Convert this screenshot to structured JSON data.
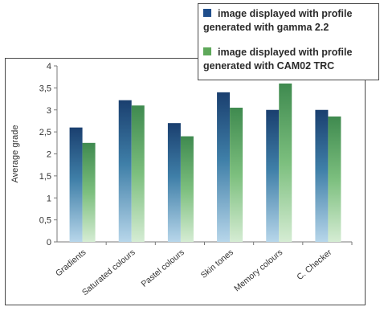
{
  "chart_data": {
    "type": "bar",
    "categories": [
      "Gradients",
      "Saturated colours",
      "Pastel colours",
      "Skin tones",
      "Memory colours",
      "C. Checker"
    ],
    "series": [
      {
        "name": "image displayed with profile generated with gamma 2.2",
        "values": [
          2.6,
          3.22,
          2.7,
          3.4,
          3.0,
          3.0
        ],
        "color": "#1f4e8c"
      },
      {
        "name": "image displayed with profile generated with CAM02 TRC",
        "values": [
          2.25,
          3.1,
          2.4,
          3.05,
          3.6,
          2.85
        ],
        "color": "#5ea85a"
      }
    ],
    "ylabel": "Average grade",
    "xlabel": "",
    "ylim": [
      0,
      4
    ],
    "yticks": [
      "0",
      "0,5",
      "1",
      "1,5",
      "2",
      "2,5",
      "3",
      "3,5",
      "4"
    ],
    "grid": false,
    "legend_position": "top-right"
  },
  "legend": {
    "items": [
      {
        "line1": "image displayed with profile",
        "line2": "generated with gamma 2.2"
      },
      {
        "line1": "image displayed with profile",
        "line2": "generated with CAM02 TRC"
      }
    ]
  }
}
